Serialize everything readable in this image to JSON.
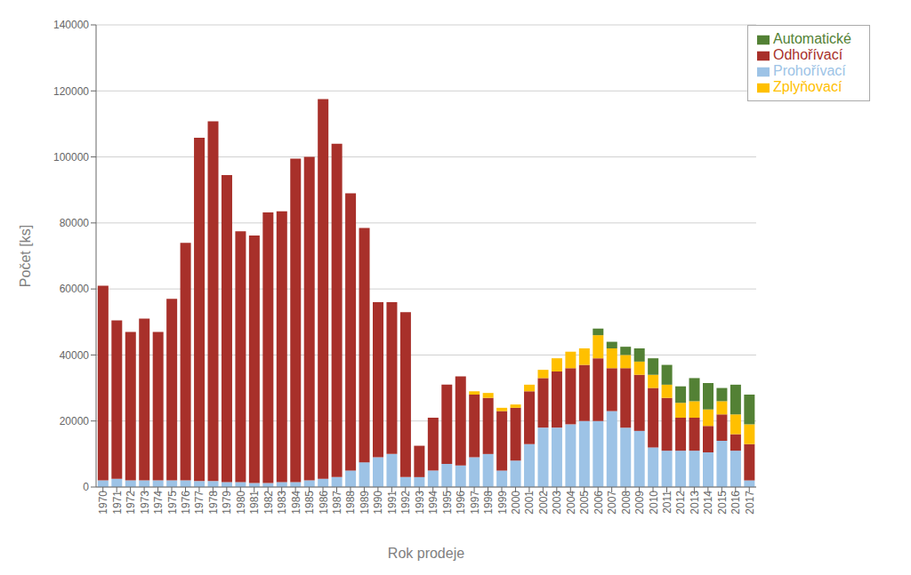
{
  "chart_data": {
    "type": "bar",
    "xlabel": "Rok prodeje",
    "ylabel": "Počet [ks]",
    "categories": [
      "1970",
      "1971",
      "1972",
      "1973",
      "1974",
      "1975",
      "1976",
      "1977",
      "1978",
      "1979",
      "1980",
      "1981",
      "1982",
      "1983",
      "1984",
      "1985",
      "1986",
      "1987",
      "1988",
      "1989",
      "1990",
      "1991",
      "1992",
      "1993",
      "1994",
      "1995",
      "1996",
      "1997",
      "1998",
      "1999",
      "2000",
      "2001",
      "2002",
      "2003",
      "2004",
      "2005",
      "2006",
      "2007",
      "2008",
      "2009",
      "2010",
      "2011",
      "2012",
      "2013",
      "2014",
      "2015",
      "2016",
      "2017"
    ],
    "series": [
      {
        "name": "Prohořívací",
        "color": "#9DC3E6",
        "values": [
          2000,
          2500,
          2000,
          2000,
          2000,
          2000,
          2000,
          1800,
          1800,
          1500,
          1500,
          1200,
          1200,
          1500,
          1500,
          2000,
          2500,
          3000,
          5000,
          7500,
          9000,
          10000,
          3000,
          3000,
          5000,
          7000,
          6500,
          9000,
          10000,
          5000,
          8000,
          13000,
          18000,
          18000,
          19000,
          20000,
          20000,
          23000,
          18000,
          17000,
          12000,
          11000,
          11000,
          11000,
          10500,
          14000,
          11000,
          2000
        ]
      },
      {
        "name": "Odhořívací",
        "color": "#A8302A",
        "values": [
          59000,
          48000,
          45000,
          49000,
          45000,
          55000,
          72000,
          104000,
          109000,
          93000,
          76000,
          75000,
          82000,
          82000,
          98000,
          98000,
          115000,
          101000,
          84000,
          71000,
          47000,
          46000,
          50000,
          9500,
          16000,
          24000,
          27000,
          19000,
          17000,
          18000,
          16000,
          16000,
          15000,
          17000,
          17000,
          17000,
          19000,
          13000,
          18000,
          17000,
          18000,
          16000,
          10000,
          10000,
          8000,
          8000,
          5000,
          11000
        ]
      },
      {
        "name": "Zplyňovací",
        "color": "#FFC000",
        "values": [
          0,
          0,
          0,
          0,
          0,
          0,
          0,
          0,
          0,
          0,
          0,
          0,
          0,
          0,
          0,
          0,
          0,
          0,
          0,
          0,
          0,
          0,
          0,
          0,
          0,
          0,
          0,
          1000,
          1500,
          1000,
          1000,
          2000,
          2500,
          4000,
          5000,
          5000,
          7000,
          6000,
          4000,
          4000,
          4000,
          4000,
          4500,
          5000,
          5000,
          4000,
          6000,
          6000
        ]
      },
      {
        "name": "Automatické",
        "color": "#538135",
        "values": [
          0,
          0,
          0,
          0,
          0,
          0,
          0,
          0,
          0,
          0,
          0,
          0,
          0,
          0,
          0,
          0,
          0,
          0,
          0,
          0,
          0,
          0,
          0,
          0,
          0,
          0,
          0,
          0,
          0,
          0,
          0,
          0,
          0,
          0,
          0,
          0,
          2000,
          2000,
          2500,
          4000,
          5000,
          6000,
          5000,
          7000,
          8000,
          4000,
          9000,
          9000
        ]
      }
    ],
    "ylim": [
      0,
      140000
    ],
    "yticks": [
      0,
      20000,
      40000,
      60000,
      80000,
      100000,
      120000,
      140000
    ],
    "stacked": true,
    "grid": true,
    "legend": "upper right"
  }
}
